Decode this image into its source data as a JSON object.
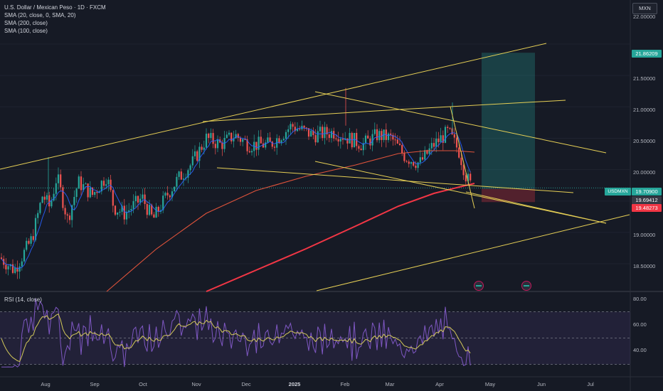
{
  "header": {
    "title": "U.S. Dollar / Mexican Peso · 1D · FXCM",
    "indicators": [
      "SMA (20, close, 0, SMA, 20)",
      "SMA (200, close)",
      "SMA (100, close)"
    ],
    "currency_button": "MXN"
  },
  "price_axis": {
    "ticks": [
      "22.00000",
      "21.50000",
      "21.00000",
      "20.50000",
      "20.00000",
      "19.00000",
      "18.50000"
    ],
    "last_price": "19.70900",
    "target_price": "21.86209",
    "entry_price": "19.69412",
    "stop_price": "19.48273",
    "symbol_tag": "USDMXN"
  },
  "rsi": {
    "label": "RSI (14, close)",
    "ticks": [
      "80.00",
      "60.00",
      "40.00"
    ]
  },
  "time_axis": {
    "labels": [
      "Aug",
      "Sep",
      "Oct",
      "Nov",
      "Dec",
      "2025",
      "Feb",
      "Mar",
      "Apr",
      "May",
      "Jun",
      "Jul"
    ]
  },
  "colors": {
    "background": "#161a25",
    "up": "#26a69a",
    "down": "#ef5350",
    "sma20": "#2962ff",
    "sma200": "#f23645",
    "sma100": "#e0533b",
    "trendline": "#e6cf55",
    "rsi": "#7e57c2"
  },
  "chart_data": {
    "type": "candlestick",
    "symbol": "USDMXN",
    "x_range": [
      "2024-07",
      "2025-07"
    ],
    "y_range": [
      18.2,
      22.3
    ],
    "last_close": 19.709,
    "long_position": {
      "entry": 19.69412,
      "target": 21.86209,
      "stop": 19.48273
    },
    "rsi_range": [
      20,
      85
    ],
    "rsi_levels": [
      70,
      50,
      30
    ]
  }
}
